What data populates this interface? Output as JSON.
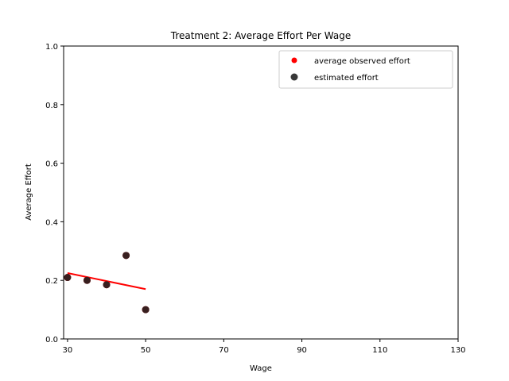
{
  "chart_data": {
    "type": "scatter",
    "title": "Treatment 2: Average Effort Per Wage",
    "xlabel": "Wage",
    "ylabel": "Average Effort",
    "xlim": [
      29,
      130
    ],
    "ylim": [
      0.0,
      1.0
    ],
    "xticks": [
      30,
      50,
      70,
      90,
      110,
      130
    ],
    "yticks": [
      0.0,
      0.2,
      0.4,
      0.6,
      0.8,
      1.0
    ],
    "xtick_labels": [
      "30",
      "50",
      "70",
      "90",
      "110",
      "130"
    ],
    "ytick_labels": [
      "0.0",
      "0.2",
      "0.4",
      "0.6",
      "0.8",
      "1.0"
    ],
    "legend_position": "top-right",
    "series": [
      {
        "name": "average observed effort",
        "kind": "scatter",
        "color": "#ff0000",
        "x": [
          30,
          35,
          40,
          45,
          50
        ],
        "y": [
          0.21,
          0.2,
          0.185,
          0.285,
          0.1
        ]
      },
      {
        "name": "estimated effort",
        "kind": "scatter",
        "color": "#222222",
        "x": [
          30,
          35,
          40,
          45,
          50
        ],
        "y": [
          0.21,
          0.2,
          0.185,
          0.285,
          0.1
        ]
      }
    ],
    "fit_line": {
      "color": "#ff0000",
      "x": [
        30,
        50
      ],
      "y": [
        0.225,
        0.17
      ]
    }
  }
}
